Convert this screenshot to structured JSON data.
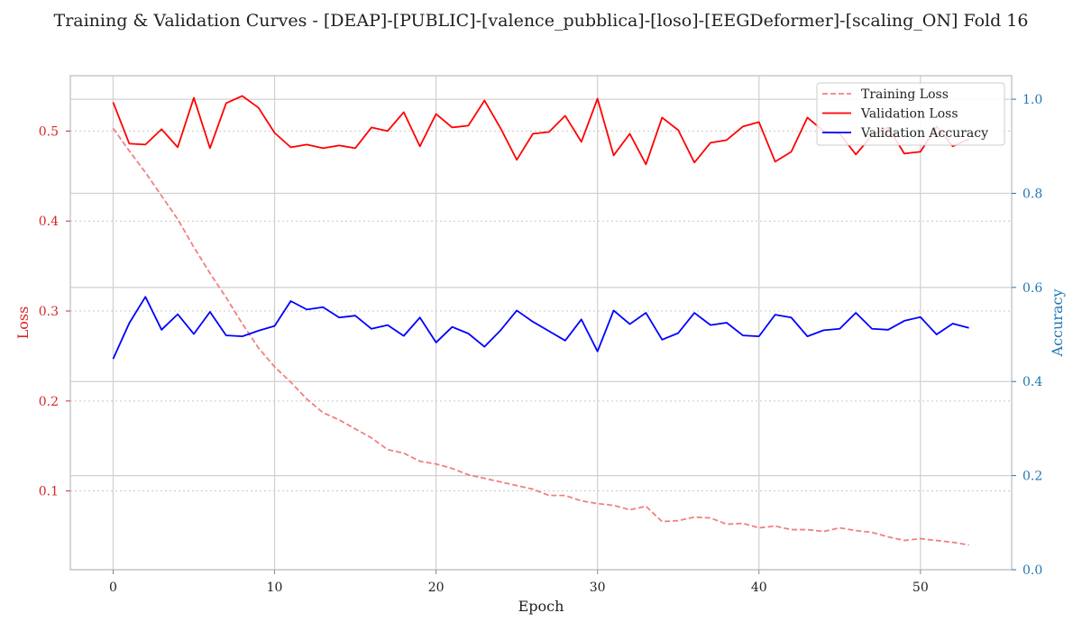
{
  "chart_data": {
    "type": "line",
    "title": "Training & Validation Curves - [DEAP]-[PUBLIC]-[valence_pubblica]-[loso]-[EEGDeformer]-[scaling_ON] Fold 16",
    "xlabel": "Epoch",
    "ylabel_left": "Loss",
    "ylabel_right": "Accuracy",
    "xlim": [
      -2.65,
      55.65
    ],
    "ylim_left": [
      0.0125,
      0.5615
    ],
    "ylim_right": [
      0.0,
      1.05
    ],
    "x_ticks": [
      0,
      10,
      20,
      30,
      40,
      50
    ],
    "y_left_ticks": [
      0.1,
      0.2,
      0.3,
      0.4,
      0.5
    ],
    "y_left_tick_labels": [
      "0.1",
      "0.2",
      "0.3",
      "0.4",
      "0.5"
    ],
    "y_right_ticks": [
      0.0,
      0.2,
      0.4,
      0.6,
      0.8,
      1.0
    ],
    "y_right_tick_labels": [
      "0.0",
      "0.2",
      "0.4",
      "0.6",
      "0.8",
      "1.0"
    ],
    "grid": true,
    "legend_position": "top-right",
    "colors": {
      "training_loss": "#f08080",
      "validation_loss": "#ff0000",
      "validation_accuracy": "#0000ff",
      "left_axis": "#d62728",
      "right_axis": "#1f77b4"
    },
    "x": [
      0,
      1,
      2,
      3,
      4,
      5,
      6,
      7,
      8,
      9,
      10,
      11,
      12,
      13,
      14,
      15,
      16,
      17,
      18,
      19,
      20,
      21,
      22,
      23,
      24,
      25,
      26,
      27,
      28,
      29,
      30,
      31,
      32,
      33,
      34,
      35,
      36,
      37,
      38,
      39,
      40,
      41,
      42,
      43,
      44,
      45,
      46,
      47,
      48,
      49,
      50,
      51,
      52,
      53
    ],
    "series": [
      {
        "name": "Training Loss",
        "axis": "left",
        "style": "dashed",
        "values": [
          0.503,
          0.478,
          0.454,
          0.428,
          0.402,
          0.371,
          0.342,
          0.315,
          0.286,
          0.259,
          0.238,
          0.221,
          0.202,
          0.187,
          0.179,
          0.169,
          0.159,
          0.146,
          0.142,
          0.133,
          0.13,
          0.125,
          0.118,
          0.114,
          0.11,
          0.106,
          0.102,
          0.095,
          0.095,
          0.089,
          0.086,
          0.084,
          0.079,
          0.083,
          0.066,
          0.067,
          0.071,
          0.07,
          0.063,
          0.064,
          0.059,
          0.061,
          0.057,
          0.057,
          0.055,
          0.059,
          0.056,
          0.054,
          0.049,
          0.045,
          0.047,
          0.045,
          0.043,
          0.04
        ]
      },
      {
        "name": "Validation Loss",
        "axis": "left",
        "style": "solid",
        "values": [
          0.532,
          0.486,
          0.485,
          0.502,
          0.482,
          0.537,
          0.481,
          0.531,
          0.539,
          0.526,
          0.498,
          0.482,
          0.485,
          0.481,
          0.484,
          0.481,
          0.504,
          0.5,
          0.521,
          0.483,
          0.519,
          0.504,
          0.506,
          0.534,
          0.503,
          0.468,
          0.497,
          0.499,
          0.517,
          0.488,
          0.536,
          0.473,
          0.497,
          0.463,
          0.515,
          0.501,
          0.465,
          0.487,
          0.49,
          0.505,
          0.51,
          0.466,
          0.477,
          0.515,
          0.5,
          0.497,
          0.474,
          0.495,
          0.504,
          0.475,
          0.477,
          0.505,
          0.483,
          0.491
        ]
      },
      {
        "name": "Validation Accuracy",
        "axis": "right",
        "style": "solid",
        "values": [
          0.448,
          0.524,
          0.58,
          0.51,
          0.543,
          0.501,
          0.548,
          0.498,
          0.496,
          0.508,
          0.518,
          0.571,
          0.553,
          0.558,
          0.536,
          0.54,
          0.512,
          0.52,
          0.497,
          0.536,
          0.483,
          0.516,
          0.502,
          0.474,
          0.509,
          0.551,
          0.527,
          0.507,
          0.487,
          0.532,
          0.464,
          0.551,
          0.522,
          0.546,
          0.489,
          0.503,
          0.546,
          0.52,
          0.525,
          0.498,
          0.496,
          0.542,
          0.536,
          0.496,
          0.509,
          0.512,
          0.546,
          0.512,
          0.51,
          0.529,
          0.537,
          0.5,
          0.523,
          0.514
        ]
      }
    ]
  }
}
